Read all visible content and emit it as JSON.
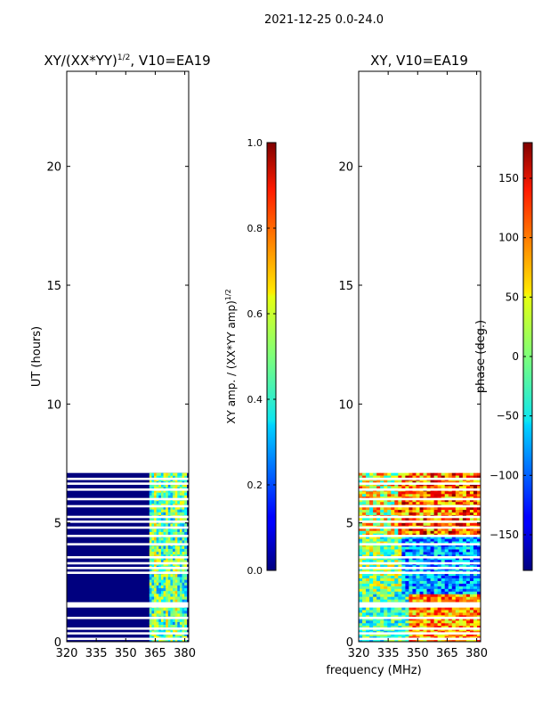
{
  "suptitle": "2021-12-25 0.0-24.0",
  "shared_xlabel": "frequency (MHz)",
  "chart_data": [
    {
      "type": "heatmap",
      "title_main": "XY/(XX*YY)",
      "title_sup": "1/2",
      "title_tail": ", V10=EA19",
      "ylabel": "UT (hours)",
      "xlim": [
        320,
        382
      ],
      "ylim": [
        0,
        24
      ],
      "xticks": [
        320,
        335,
        350,
        365,
        380
      ],
      "yticks": [
        0,
        5,
        10,
        15,
        20
      ],
      "data_range_hours": [
        0,
        7.1
      ],
      "colorbar": {
        "label_main": "XY amp. / (XX*YY amp)",
        "label_sup": "1/2",
        "range": [
          0.0,
          1.0
        ],
        "ticks": [
          "0.0",
          "0.2",
          "0.4",
          "0.6",
          "0.8",
          "1.0"
        ],
        "tick_values": [
          0.0,
          0.2,
          0.4,
          0.6,
          0.8,
          1.0
        ],
        "colormap": "jet"
      },
      "gap_rows_hours": [
        0.12,
        0.35,
        0.55,
        1.0,
        1.55,
        2.9,
        3.1,
        3.3,
        3.55,
        4.1,
        4.45,
        4.8,
        5.05,
        5.25,
        5.7,
        6.0,
        6.4,
        6.65,
        6.85
      ],
      "bright_band_mhz": [
        362,
        381
      ]
    },
    {
      "type": "heatmap",
      "title": "XY, V10=EA19",
      "xlim": [
        320,
        382
      ],
      "ylim": [
        0,
        24
      ],
      "xticks": [
        320,
        335,
        350,
        365,
        380
      ],
      "yticks": [
        0,
        5,
        10,
        15,
        20
      ],
      "data_range_hours": [
        0,
        7.1
      ],
      "colorbar": {
        "label": "phase (deg.)",
        "range": [
          -180,
          180
        ],
        "ticks": [
          "150",
          "100",
          "50",
          "0",
          "−50",
          "−100",
          "−150"
        ],
        "tick_values": [
          150,
          100,
          50,
          0,
          -50,
          -100,
          -150
        ],
        "colormap": "jet"
      },
      "gap_rows_hours": [
        0.12,
        0.35,
        0.55,
        1.0,
        1.55,
        2.9,
        3.1,
        3.3,
        3.55,
        4.1,
        4.45,
        4.8,
        5.05,
        5.25,
        5.7,
        6.0,
        6.4,
        6.65,
        6.85
      ]
    }
  ]
}
